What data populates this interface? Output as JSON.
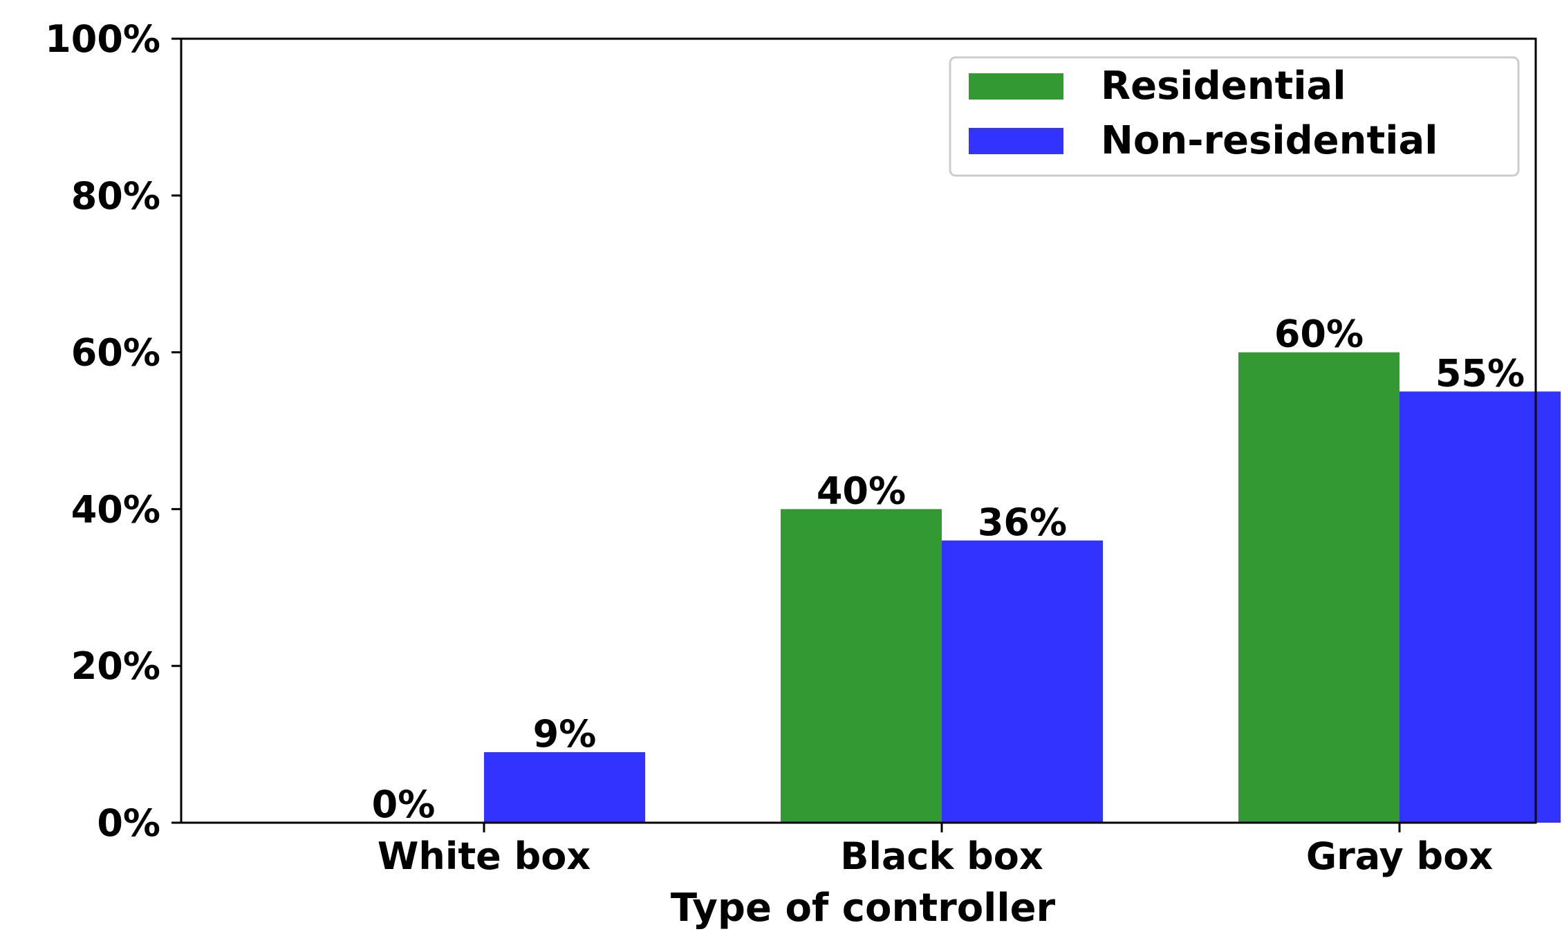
{
  "chart_data": {
    "type": "bar",
    "categories": [
      "White box",
      "Black box",
      "Gray  box"
    ],
    "series": [
      {
        "name": "Residential",
        "values": [
          0,
          40,
          60
        ],
        "labels": [
          "0%",
          "40%",
          "60%"
        ],
        "color": "#339933"
      },
      {
        "name": "Non-residential",
        "values": [
          9,
          36,
          55
        ],
        "labels": [
          "9%",
          "36%",
          "55%"
        ],
        "color": "#3333ff"
      }
    ],
    "title": "",
    "xlabel": "Type of controller",
    "ylabel": "",
    "ylim": [
      0,
      100
    ],
    "yticks": [
      0,
      20,
      40,
      60,
      80,
      100
    ],
    "ytick_labels": [
      "0%",
      "20%",
      "40%",
      "60%",
      "80%",
      "100%"
    ],
    "grid": false,
    "legend_position": "top-right"
  }
}
